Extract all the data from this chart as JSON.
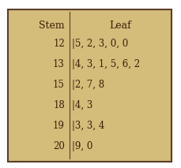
{
  "title_stem": "Stem",
  "title_leaf": "Leaf",
  "rows": [
    {
      "stem": "12",
      "leaf": "5, 2, 3, 0, 0"
    },
    {
      "stem": "13",
      "leaf": "4, 3, 1, 5, 6, 2"
    },
    {
      "stem": "15",
      "leaf": "2, 7, 8"
    },
    {
      "stem": "18",
      "leaf": "4, 3"
    },
    {
      "stem": "19",
      "leaf": "3, 3, 4"
    },
    {
      "stem": "20",
      "leaf": "9, 0"
    }
  ],
  "outer_bg": "#ffffff",
  "bg_color": "#d4bc7a",
  "border_color": "#5a3e28",
  "text_color": "#3b2008",
  "header_color": "#3b2008",
  "figsize": [
    2.29,
    2.13
  ],
  "dpi": 100,
  "font_size": 8.5,
  "header_font_size": 9
}
